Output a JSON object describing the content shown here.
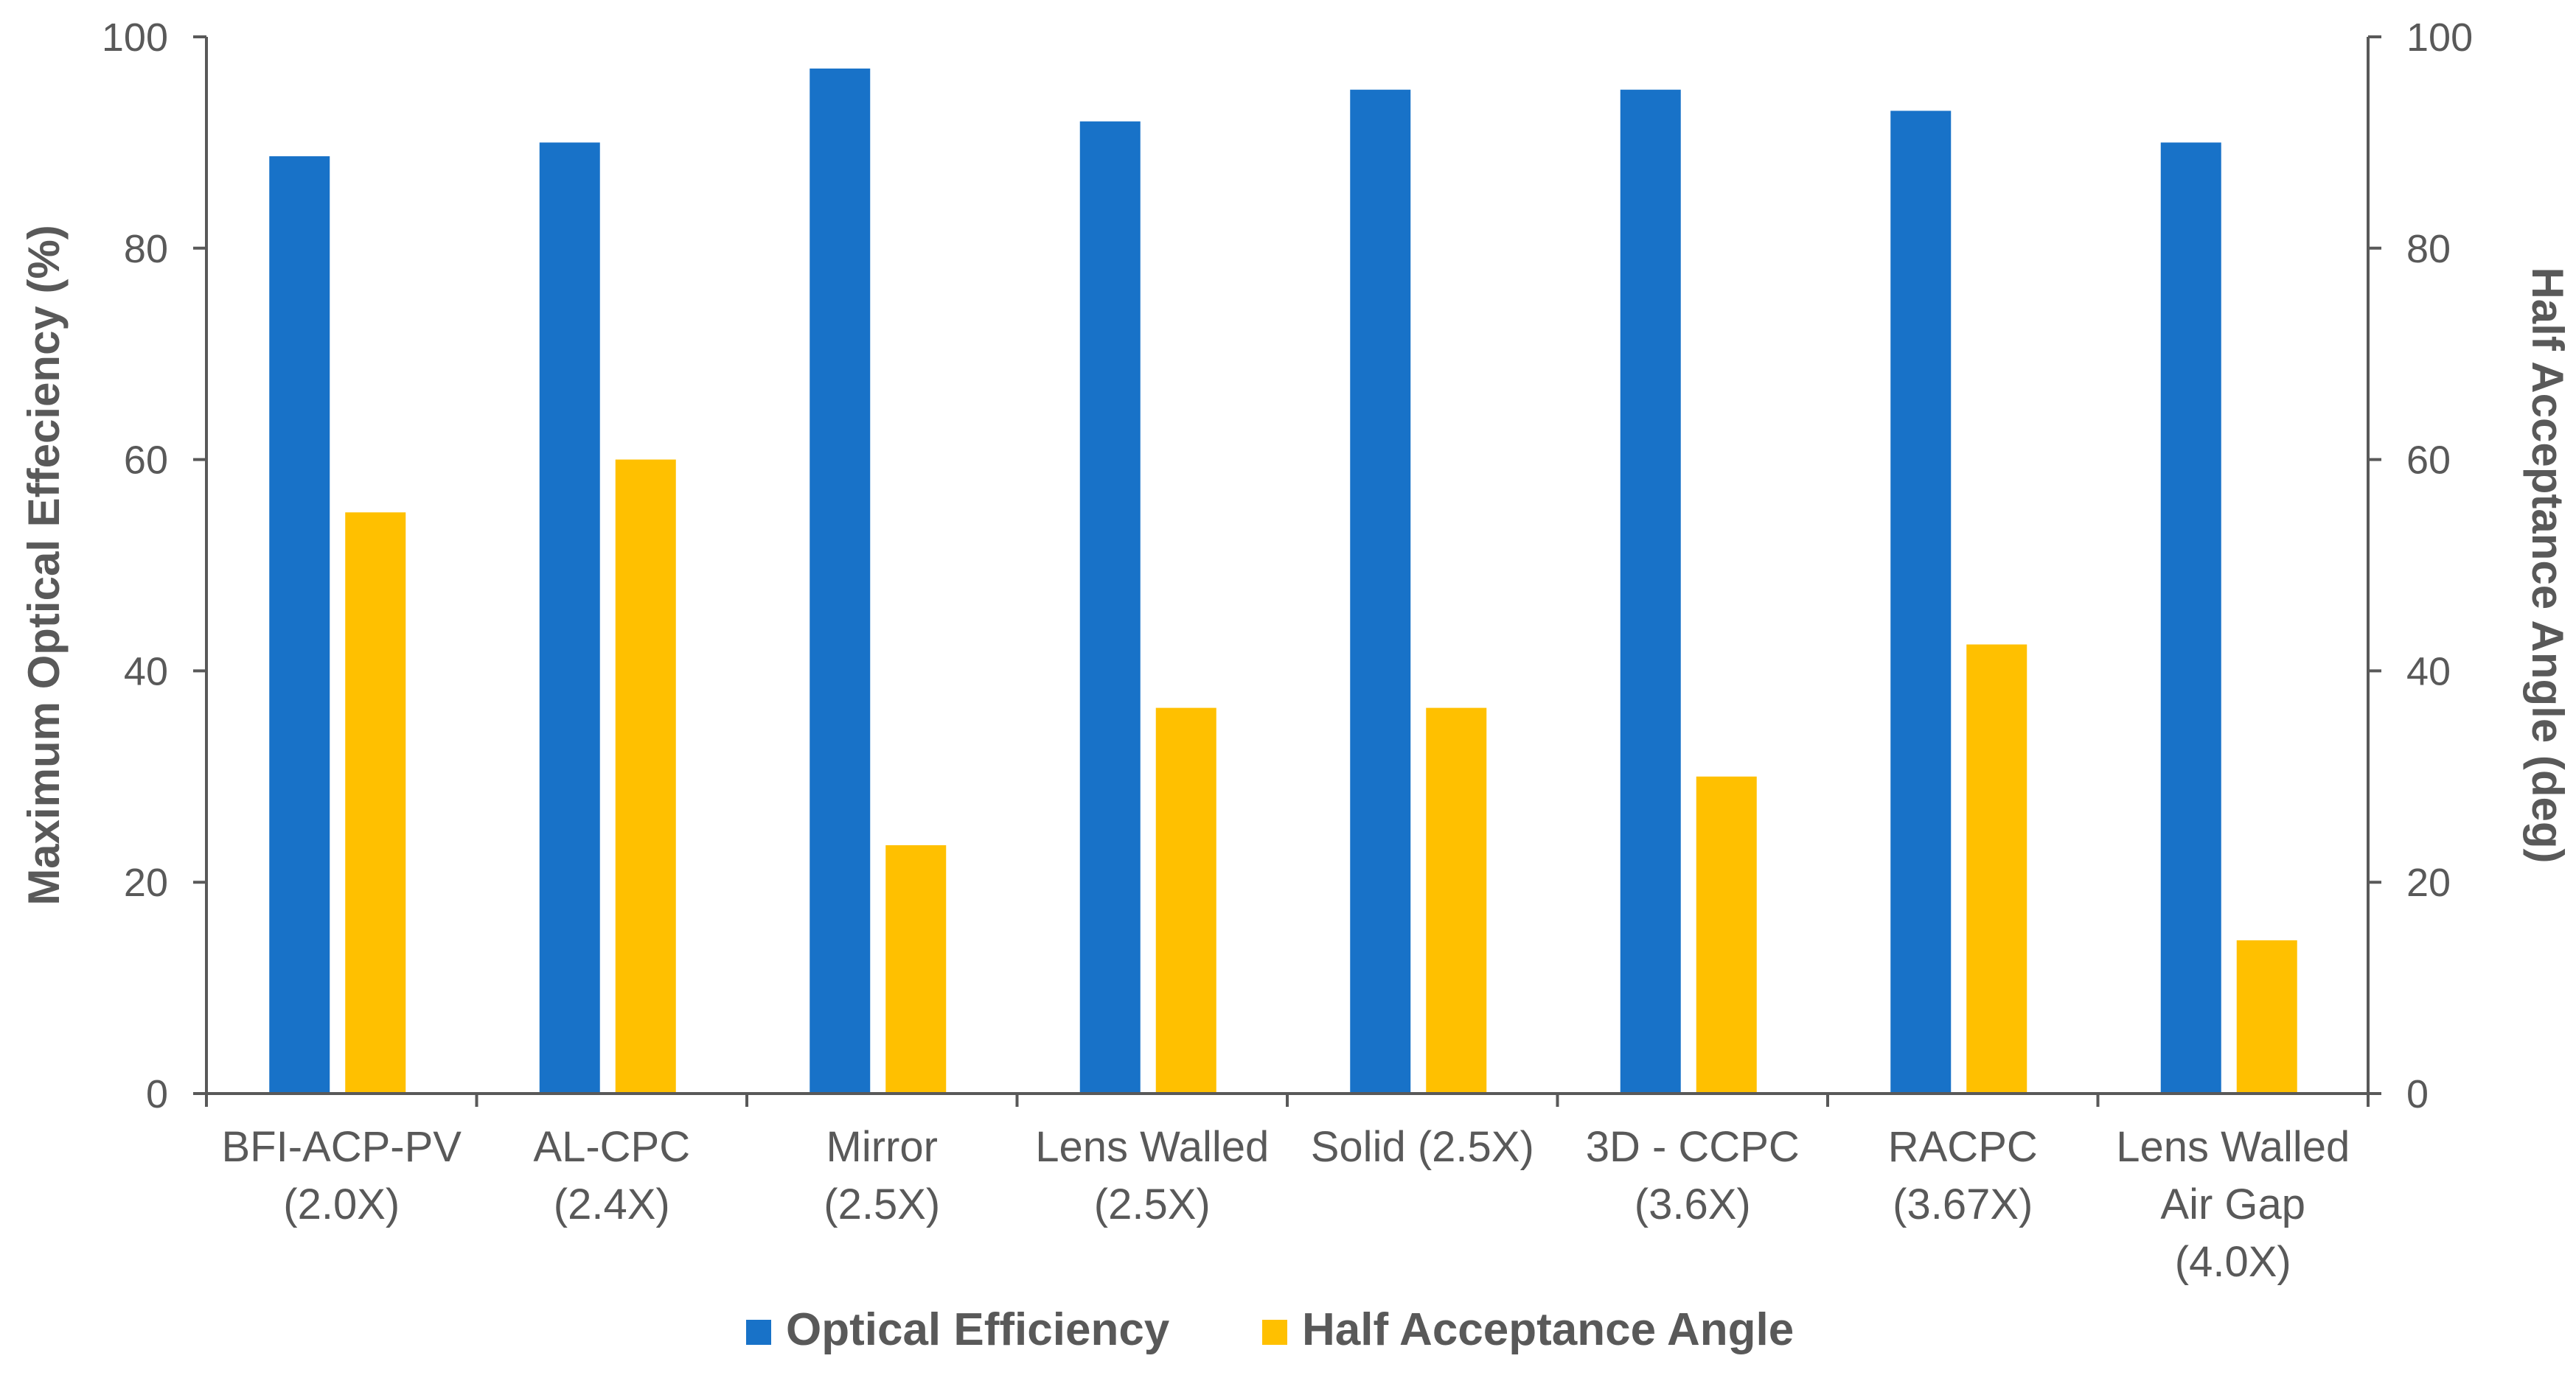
{
  "chart_data": {
    "type": "bar",
    "title": "",
    "categories": [
      [
        "BFI-ACP-PV",
        "(2.0X)"
      ],
      [
        "AL-CPC",
        "(2.4X)"
      ],
      [
        "Mirror",
        "(2.5X)"
      ],
      [
        "Lens Walled",
        "(2.5X)"
      ],
      [
        "Solid (2.5X)"
      ],
      [
        "3D - CCPC",
        "(3.6X)"
      ],
      [
        "RACPC",
        "(3.67X)"
      ],
      [
        "Lens Walled",
        "Air Gap",
        "(4.0X)"
      ]
    ],
    "series": [
      {
        "name": "Optical Efficiency",
        "axis": "left",
        "color": "#1872C8",
        "values": [
          88.7,
          90,
          97,
          92,
          95,
          95,
          93,
          90
        ]
      },
      {
        "name": "Half Acceptance Angle",
        "axis": "right",
        "color": "#FFC000",
        "values": [
          55,
          60,
          23.5,
          36.5,
          36.5,
          30,
          42.5,
          14.5
        ]
      }
    ],
    "ylabel": "Maximum Optical Effeciency  (%)",
    "y2label": "Half Acceptance Angle (deg)",
    "xlabel": "",
    "ylim": [
      0,
      100
    ],
    "y2lim": [
      0,
      100
    ],
    "yticks": [
      0,
      20,
      40,
      60,
      80,
      100
    ],
    "y2ticks": [
      0,
      20,
      40,
      60,
      80,
      100
    ],
    "grid": false,
    "legend": "bottom"
  }
}
